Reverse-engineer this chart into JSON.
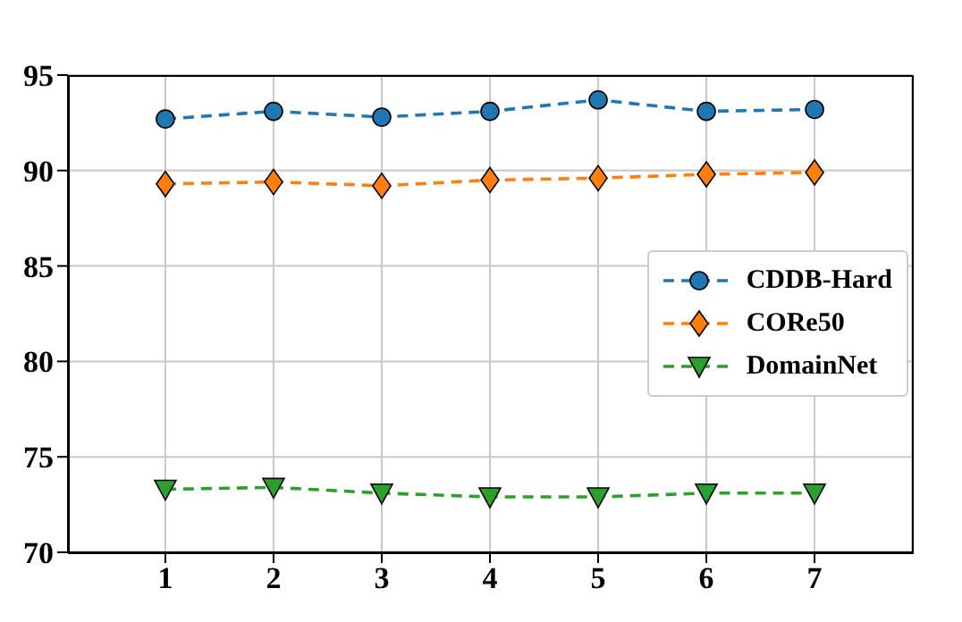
{
  "chart_data": {
    "type": "line",
    "x": [
      1,
      2,
      3,
      4,
      5,
      6,
      7
    ],
    "xlim": [
      0.1,
      7.9
    ],
    "xticks": [
      1,
      2,
      3,
      4,
      5,
      6,
      7
    ],
    "ylim": [
      70,
      95
    ],
    "yticks": [
      70,
      75,
      80,
      85,
      90,
      95
    ],
    "grid": true,
    "legend": "right",
    "line_style": "dashed",
    "series": [
      {
        "name": "CDDB-Hard",
        "color": "#1f77b4",
        "marker": "circle",
        "values": [
          92.7,
          93.1,
          92.8,
          93.1,
          93.7,
          93.1,
          93.2
        ]
      },
      {
        "name": "CORe50",
        "color": "#ff7f0e",
        "marker": "diamond",
        "values": [
          89.3,
          89.4,
          89.2,
          89.5,
          89.6,
          89.8,
          89.9
        ]
      },
      {
        "name": "DomainNet",
        "color": "#2ca02c",
        "marker": "triangle",
        "values": [
          73.3,
          73.4,
          73.1,
          72.9,
          72.9,
          73.1,
          73.1
        ]
      }
    ]
  }
}
